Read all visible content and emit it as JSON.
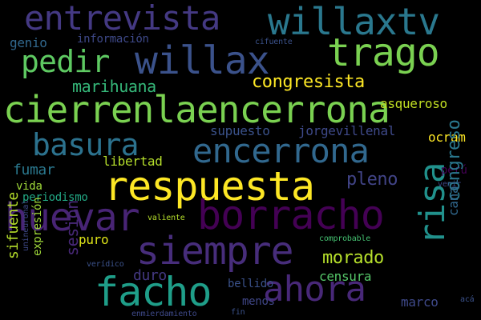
{
  "words": [
    {
      "text": "cierrenlaencerrona",
      "color": "#7ad151",
      "vertical": false
    },
    {
      "text": "respuesta",
      "color": "#fde725",
      "vertical": false
    },
    {
      "text": "borracho",
      "color": "#440154",
      "vertical": false
    },
    {
      "text": "huevar",
      "color": "#482475",
      "vertical": false
    },
    {
      "text": "encerrona",
      "color": "#31688e",
      "vertical": false
    },
    {
      "text": "willax",
      "color": "#3b528b",
      "vertical": false
    },
    {
      "text": "willaxtv",
      "color": "#2a788e",
      "vertical": false
    },
    {
      "text": "trago",
      "color": "#7ad151",
      "vertical": false
    },
    {
      "text": "entrevista",
      "color": "#443983",
      "vertical": false
    },
    {
      "text": "pedir",
      "color": "#5ec962",
      "vertical": false
    },
    {
      "text": "siempre",
      "color": "#472d7b",
      "vertical": false
    },
    {
      "text": "facho",
      "color": "#1f9e89",
      "vertical": false
    },
    {
      "text": "ahora",
      "color": "#482878",
      "vertical": false
    },
    {
      "text": "risa",
      "color": "#21918c",
      "vertical": true
    },
    {
      "text": "basura",
      "color": "#2c728e",
      "vertical": false
    },
    {
      "text": "congresista",
      "color": "#fde725",
      "vertical": false
    },
    {
      "text": "marihuana",
      "color": "#35b779",
      "vertical": false
    },
    {
      "text": "asqueroso",
      "color": "#c2df23",
      "vertical": false
    },
    {
      "text": "supuesto",
      "color": "#3b528b",
      "vertical": false
    },
    {
      "text": "jorgevillenal",
      "color": "#3e4989",
      "vertical": false
    },
    {
      "text": "ocram",
      "color": "#fde725",
      "vertical": false
    },
    {
      "text": "fumar",
      "color": "#2a788e",
      "vertical": false
    },
    {
      "text": "vida",
      "color": "#a0da39",
      "vertical": false
    },
    {
      "text": "libertad",
      "color": "#b5de2b",
      "vertical": false
    },
    {
      "text": "periodismo",
      "color": "#22a884",
      "vertical": false
    },
    {
      "text": "pleno",
      "color": "#414487",
      "vertical": false
    },
    {
      "text": "perú",
      "color": "#440154",
      "vertical": false
    },
    {
      "text": "venir",
      "color": "#3e4989",
      "vertical": false
    },
    {
      "text": "congreso",
      "color": "#2a788e",
      "vertical": true
    },
    {
      "text": "canal",
      "color": "#31688e",
      "vertical": true
    },
    {
      "text": "morado",
      "color": "#b5de2b",
      "vertical": false
    },
    {
      "text": "sesión",
      "color": "#482878",
      "vertical": true
    },
    {
      "text": "puro",
      "color": "#dde318",
      "vertical": false
    },
    {
      "text": "valiente",
      "color": "#b5de2b",
      "vertical": false
    },
    {
      "text": "comprobable",
      "color": "#44bf70",
      "vertical": false
    },
    {
      "text": "duro",
      "color": "#443983",
      "vertical": false
    },
    {
      "text": "censura",
      "color": "#54c568",
      "vertical": false
    },
    {
      "text": "bellido",
      "color": "#3b528b",
      "vertical": false
    },
    {
      "text": "menos",
      "color": "#404788",
      "vertical": false
    },
    {
      "text": "marco",
      "color": "#3e4989",
      "vertical": false
    },
    {
      "text": "verídico",
      "color": "#3b528b",
      "vertical": false
    },
    {
      "text": "fin",
      "color": "#3b528b",
      "vertical": false
    },
    {
      "text": "acá",
      "color": "#3b528b",
      "vertical": false
    },
    {
      "text": "enmierdamiento",
      "color": "#3e4989",
      "vertical": false
    },
    {
      "text": "genio",
      "color": "#31688e",
      "vertical": false
    },
    {
      "text": "información",
      "color": "#3e4989",
      "vertical": false
    },
    {
      "text": "cifuente",
      "color": "#3b528b",
      "vertical": false
    },
    {
      "text": "sifuente",
      "color": "#b5de2b",
      "vertical": true
    },
    {
      "text": "unineuronal",
      "color": "#3e4989",
      "vertical": true
    },
    {
      "text": "expresión",
      "color": "#a0da39",
      "vertical": true
    }
  ]
}
